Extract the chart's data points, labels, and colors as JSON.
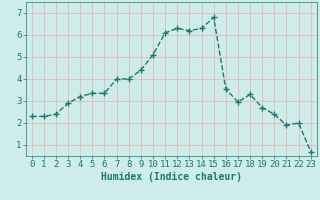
{
  "title": "",
  "xlabel": "Humidex (Indice chaleur)",
  "x": [
    0,
    1,
    2,
    3,
    4,
    5,
    6,
    7,
    8,
    9,
    10,
    11,
    12,
    13,
    14,
    15,
    16,
    17,
    18,
    19,
    20,
    21,
    22,
    23
  ],
  "y": [
    2.3,
    2.3,
    2.4,
    2.9,
    3.2,
    3.35,
    3.35,
    4.0,
    4.0,
    4.4,
    5.1,
    6.1,
    6.3,
    6.2,
    6.3,
    6.8,
    3.55,
    2.95,
    3.3,
    2.7,
    2.4,
    1.9,
    2.0,
    0.7
  ],
  "line_color": "#1a7a6e",
  "marker": "+",
  "marker_size": 4,
  "marker_lw": 1.0,
  "bg_color": "#ceecea",
  "grid_color_major": "#e8b8b8",
  "grid_color_minor": "#e8b8b8",
  "ylim": [
    0.5,
    7.5
  ],
  "xlim": [
    -0.5,
    23.5
  ],
  "yticks": [
    1,
    2,
    3,
    4,
    5,
    6,
    7
  ],
  "xticks": [
    0,
    1,
    2,
    3,
    4,
    5,
    6,
    7,
    8,
    9,
    10,
    11,
    12,
    13,
    14,
    15,
    16,
    17,
    18,
    19,
    20,
    21,
    22,
    23
  ],
  "xlabel_fontsize": 7,
  "tick_fontsize": 6.5,
  "line_width": 1.0,
  "line_style": "--"
}
